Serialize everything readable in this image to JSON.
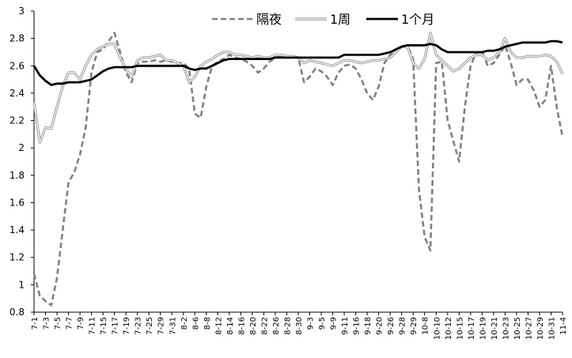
{
  "chart_data": {
    "type": "line",
    "title": "",
    "xlabel": "",
    "ylabel": "",
    "ylim": [
      0.8,
      3
    ],
    "yticks": [
      "0.8",
      "1",
      "1.2",
      "1.4",
      "1.6",
      "1.8",
      "2",
      "2.2",
      "2.4",
      "2.6",
      "2.8",
      "3"
    ],
    "xtick_labels": [
      "7-1",
      "7-3",
      "7-5",
      "7-7",
      "7-9",
      "7-11",
      "7-15",
      "7-17",
      "7-19",
      "7-23",
      "7-25",
      "7-29",
      "7-31",
      "8-2",
      "8-6",
      "8-8",
      "8-12",
      "8-14",
      "8-16",
      "8-20",
      "8-22",
      "8-26",
      "8-28",
      "8-30",
      "9-3",
      "9-5",
      "9-9",
      "9-11",
      "9-16",
      "9-18",
      "9-20",
      "9-26",
      "9-28",
      "9-29",
      "10-8",
      "10-10",
      "10-12",
      "10-15",
      "10-17",
      "10-19",
      "10-21",
      "10-23",
      "10-25",
      "10-27",
      "10-29",
      "10-31",
      "11-4"
    ],
    "legend_position": "top-right",
    "series": [
      {
        "name": "隔夜",
        "style": "dashed",
        "color": "#808080",
        "values": [
          1.08,
          0.92,
          0.88,
          0.85,
          1.05,
          1.4,
          1.75,
          1.82,
          1.95,
          2.15,
          2.55,
          2.7,
          2.72,
          2.78,
          2.84,
          2.7,
          2.55,
          2.48,
          2.62,
          2.63,
          2.63,
          2.64,
          2.63,
          2.64,
          2.63,
          2.62,
          2.62,
          2.58,
          2.25,
          2.22,
          2.45,
          2.6,
          2.63,
          2.65,
          2.68,
          2.66,
          2.65,
          2.63,
          2.6,
          2.55,
          2.58,
          2.63,
          2.66,
          2.67,
          2.66,
          2.67,
          2.66,
          2.48,
          2.52,
          2.58,
          2.56,
          2.52,
          2.46,
          2.55,
          2.6,
          2.61,
          2.58,
          2.5,
          2.4,
          2.35,
          2.45,
          2.62,
          2.68,
          2.7,
          2.74,
          2.75,
          2.65,
          1.7,
          1.35,
          1.25,
          2.62,
          2.63,
          2.2,
          2.05,
          1.9,
          2.3,
          2.6,
          2.7,
          2.7,
          2.6,
          2.62,
          2.68,
          2.75,
          2.62,
          2.46,
          2.5,
          2.5,
          2.42,
          2.3,
          2.35,
          2.6,
          2.3,
          2.08
        ]
      },
      {
        "name": "1周",
        "style": "double",
        "color": "#999999",
        "values": [
          2.33,
          2.04,
          2.15,
          2.14,
          2.3,
          2.45,
          2.55,
          2.55,
          2.5,
          2.6,
          2.68,
          2.72,
          2.74,
          2.76,
          2.76,
          2.66,
          2.58,
          2.52,
          2.64,
          2.66,
          2.66,
          2.67,
          2.68,
          2.64,
          2.64,
          2.62,
          2.6,
          2.48,
          2.52,
          2.6,
          2.63,
          2.65,
          2.68,
          2.7,
          2.7,
          2.68,
          2.68,
          2.67,
          2.66,
          2.67,
          2.66,
          2.66,
          2.68,
          2.68,
          2.67,
          2.67,
          2.66,
          2.62,
          2.64,
          2.63,
          2.62,
          2.61,
          2.6,
          2.62,
          2.64,
          2.64,
          2.63,
          2.62,
          2.63,
          2.64,
          2.64,
          2.65,
          2.66,
          2.7,
          2.74,
          2.74,
          2.62,
          2.58,
          2.65,
          2.84,
          2.68,
          2.64,
          2.6,
          2.56,
          2.58,
          2.62,
          2.66,
          2.68,
          2.68,
          2.64,
          2.66,
          2.7,
          2.8,
          2.7,
          2.66,
          2.66,
          2.67,
          2.67,
          2.67,
          2.68,
          2.67,
          2.63,
          2.54
        ]
      },
      {
        "name": "1个月",
        "style": "solid",
        "color": "#000000",
        "values": [
          2.6,
          2.53,
          2.49,
          2.46,
          2.47,
          2.47,
          2.48,
          2.48,
          2.48,
          2.49,
          2.5,
          2.53,
          2.56,
          2.58,
          2.59,
          2.59,
          2.59,
          2.59,
          2.6,
          2.6,
          2.6,
          2.6,
          2.6,
          2.6,
          2.6,
          2.6,
          2.6,
          2.58,
          2.57,
          2.58,
          2.58,
          2.6,
          2.62,
          2.64,
          2.65,
          2.65,
          2.65,
          2.65,
          2.65,
          2.65,
          2.65,
          2.65,
          2.66,
          2.66,
          2.66,
          2.66,
          2.66,
          2.66,
          2.66,
          2.66,
          2.66,
          2.66,
          2.66,
          2.66,
          2.68,
          2.68,
          2.68,
          2.68,
          2.68,
          2.68,
          2.68,
          2.69,
          2.7,
          2.72,
          2.74,
          2.75,
          2.75,
          2.75,
          2.75,
          2.76,
          2.75,
          2.72,
          2.7,
          2.7,
          2.7,
          2.7,
          2.7,
          2.7,
          2.7,
          2.71,
          2.71,
          2.72,
          2.74,
          2.75,
          2.76,
          2.77,
          2.77,
          2.77,
          2.77,
          2.77,
          2.78,
          2.78,
          2.77
        ]
      }
    ]
  }
}
